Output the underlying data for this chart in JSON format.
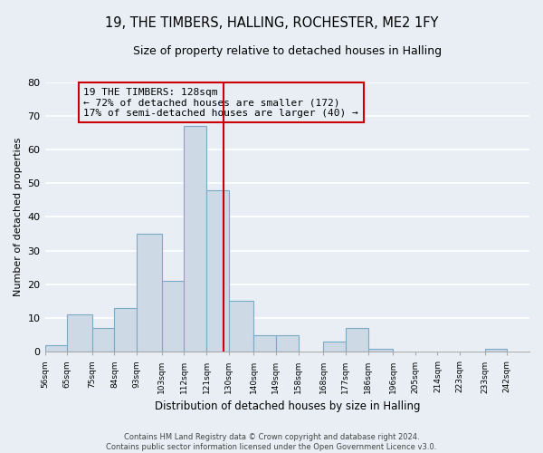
{
  "title": "19, THE TIMBERS, HALLING, ROCHESTER, ME2 1FY",
  "subtitle": "Size of property relative to detached houses in Halling",
  "xlabel": "Distribution of detached houses by size in Halling",
  "ylabel": "Number of detached properties",
  "bin_labels": [
    "56sqm",
    "65sqm",
    "75sqm",
    "84sqm",
    "93sqm",
    "103sqm",
    "112sqm",
    "121sqm",
    "130sqm",
    "140sqm",
    "149sqm",
    "158sqm",
    "168sqm",
    "177sqm",
    "186sqm",
    "196sqm",
    "205sqm",
    "214sqm",
    "223sqm",
    "233sqm",
    "242sqm"
  ],
  "bin_edges": [
    56,
    65,
    75,
    84,
    93,
    103,
    112,
    121,
    130,
    140,
    149,
    158,
    168,
    177,
    186,
    196,
    205,
    214,
    223,
    233,
    242
  ],
  "bar_heights": [
    2,
    11,
    7,
    13,
    35,
    21,
    67,
    48,
    15,
    5,
    5,
    0,
    3,
    7,
    1,
    0,
    0,
    0,
    0,
    1
  ],
  "bar_color": "#cdd9e5",
  "bar_edgecolor": "#7aaac8",
  "property_value": 128,
  "marker_line_color": "#cc0000",
  "annotation_box_edgecolor": "#cc0000",
  "annotation_title": "19 THE TIMBERS: 128sqm",
  "annotation_line1": "← 72% of detached houses are smaller (172)",
  "annotation_line2": "17% of semi-detached houses are larger (40) →",
  "ylim": [
    0,
    80
  ],
  "yticks": [
    0,
    10,
    20,
    30,
    40,
    50,
    60,
    70,
    80
  ],
  "footer_line1": "Contains HM Land Registry data © Crown copyright and database right 2024.",
  "footer_line2": "Contains public sector information licensed under the Open Government Licence v3.0.",
  "background_color": "#e8eef4",
  "grid_color": "#ffffff"
}
